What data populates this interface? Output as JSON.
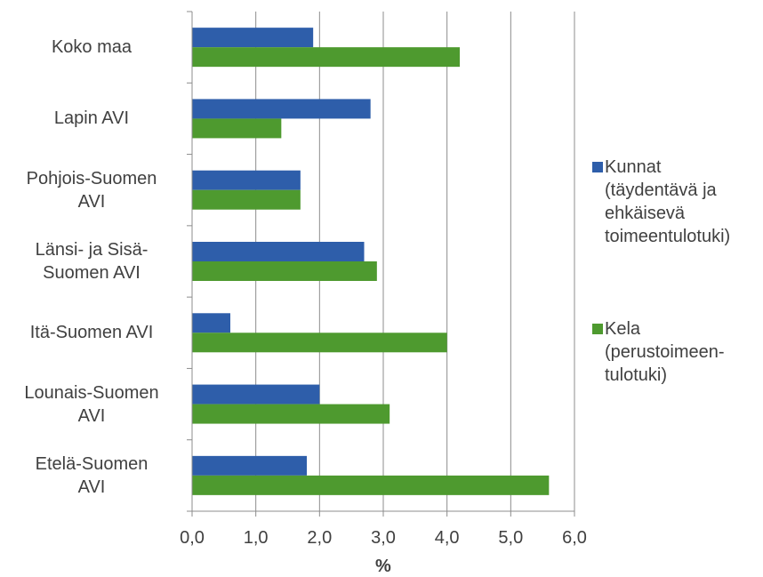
{
  "chart_data": {
    "type": "bar",
    "orientation": "horizontal",
    "categories": [
      "Koko maa",
      "Lapin AVI",
      "Pohjois-Suomen\nAVI",
      "Länsi- ja Sisä-\nSuomen AVI",
      "Itä-Suomen AVI",
      "Lounais-Suomen\nAVI",
      "Etelä-Suomen\nAVI"
    ],
    "series": [
      {
        "name": "Kunnat\n(täydentävä ja\nehkäisevä\ntoimeentulotuki)",
        "color": "#2e5eaa",
        "values": [
          1.9,
          2.8,
          1.7,
          2.7,
          0.6,
          2.0,
          1.8
        ]
      },
      {
        "name": "Kela\n(perustoimeen-\ntulotuki)",
        "color": "#4e9a2f",
        "values": [
          4.2,
          1.4,
          1.7,
          2.9,
          4.0,
          3.1,
          5.6
        ]
      }
    ],
    "xlabel": "%",
    "ylabel": "",
    "xlim": [
      0,
      6
    ],
    "xticks": [
      0,
      1,
      2,
      3,
      4,
      5,
      6
    ],
    "xtick_labels": [
      "0,0",
      "1,0",
      "2,0",
      "3,0",
      "4,0",
      "5,0",
      "6,0"
    ],
    "grid": "vertical",
    "legend_position": "right"
  }
}
